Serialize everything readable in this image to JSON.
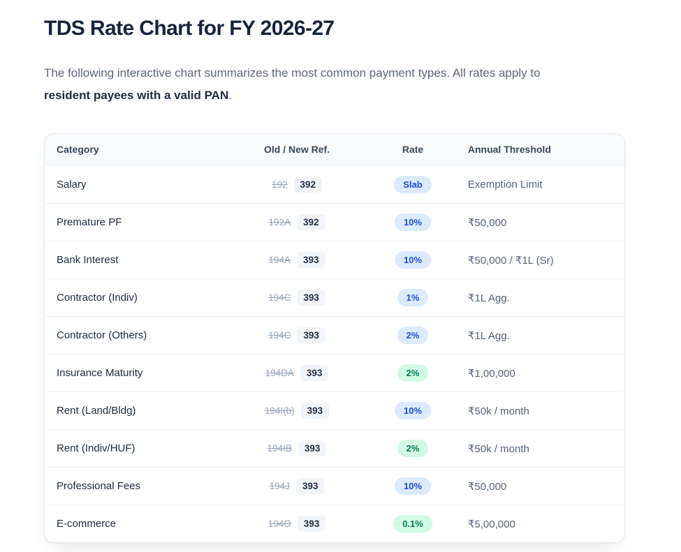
{
  "page": {
    "title": "TDS Rate Chart for FY 2026-27",
    "intro_text": "The following interactive chart summarizes the most common payment types. All rates apply to",
    "intro_strong": "resident payees with a valid PAN",
    "intro_period": "."
  },
  "table": {
    "columns": [
      "Category",
      "Old / New Ref.",
      "Rate",
      "Annual Threshold"
    ],
    "rows": [
      {
        "category": "Salary",
        "old_ref": "192",
        "new_ref": "392",
        "rate": "Slab",
        "rate_style": "blue",
        "threshold": "Exemption Limit"
      },
      {
        "category": "Premature PF",
        "old_ref": "192A",
        "new_ref": "392",
        "rate": "10%",
        "rate_style": "blue",
        "threshold": "₹50,000"
      },
      {
        "category": "Bank Interest",
        "old_ref": "194A",
        "new_ref": "393",
        "rate": "10%",
        "rate_style": "blue",
        "threshold": "₹50,000 / ₹1L (Sr)"
      },
      {
        "category": "Contractor (Indiv)",
        "old_ref": "194C",
        "new_ref": "393",
        "rate": "1%",
        "rate_style": "blue",
        "threshold": "₹1L Agg."
      },
      {
        "category": "Contractor (Others)",
        "old_ref": "194C",
        "new_ref": "393",
        "rate": "2%",
        "rate_style": "blue",
        "threshold": "₹1L Agg."
      },
      {
        "category": "Insurance Maturity",
        "old_ref": "194DA",
        "new_ref": "393",
        "rate": "2%",
        "rate_style": "green",
        "threshold": "₹1,00,000"
      },
      {
        "category": "Rent (Land/Bldg)",
        "old_ref": "194I(b)",
        "new_ref": "393",
        "rate": "10%",
        "rate_style": "blue",
        "threshold": "₹50k / month"
      },
      {
        "category": "Rent (Indiv/HUF)",
        "old_ref": "194IB",
        "new_ref": "393",
        "rate": "2%",
        "rate_style": "green",
        "threshold": "₹50k / month"
      },
      {
        "category": "Professional Fees",
        "old_ref": "194J",
        "new_ref": "393",
        "rate": "10%",
        "rate_style": "blue",
        "threshold": "₹50,000"
      },
      {
        "category": "E-commerce",
        "old_ref": "194O",
        "new_ref": "393",
        "rate": "0.1%",
        "rate_style": "green",
        "threshold": "₹5,00,000"
      }
    ]
  },
  "colors": {
    "title": "#16233b",
    "body_text": "#5b6678",
    "card_border": "#e2e8f0",
    "header_bg": "#f8fafc",
    "old_ref_text": "#94a3b8",
    "new_ref_chip_bg": "#f1f5f9",
    "rate_blue_bg": "#dbeafe",
    "rate_blue_text": "#1d4ed8",
    "rate_green_bg": "#d1fae5",
    "rate_green_text": "#047857"
  }
}
